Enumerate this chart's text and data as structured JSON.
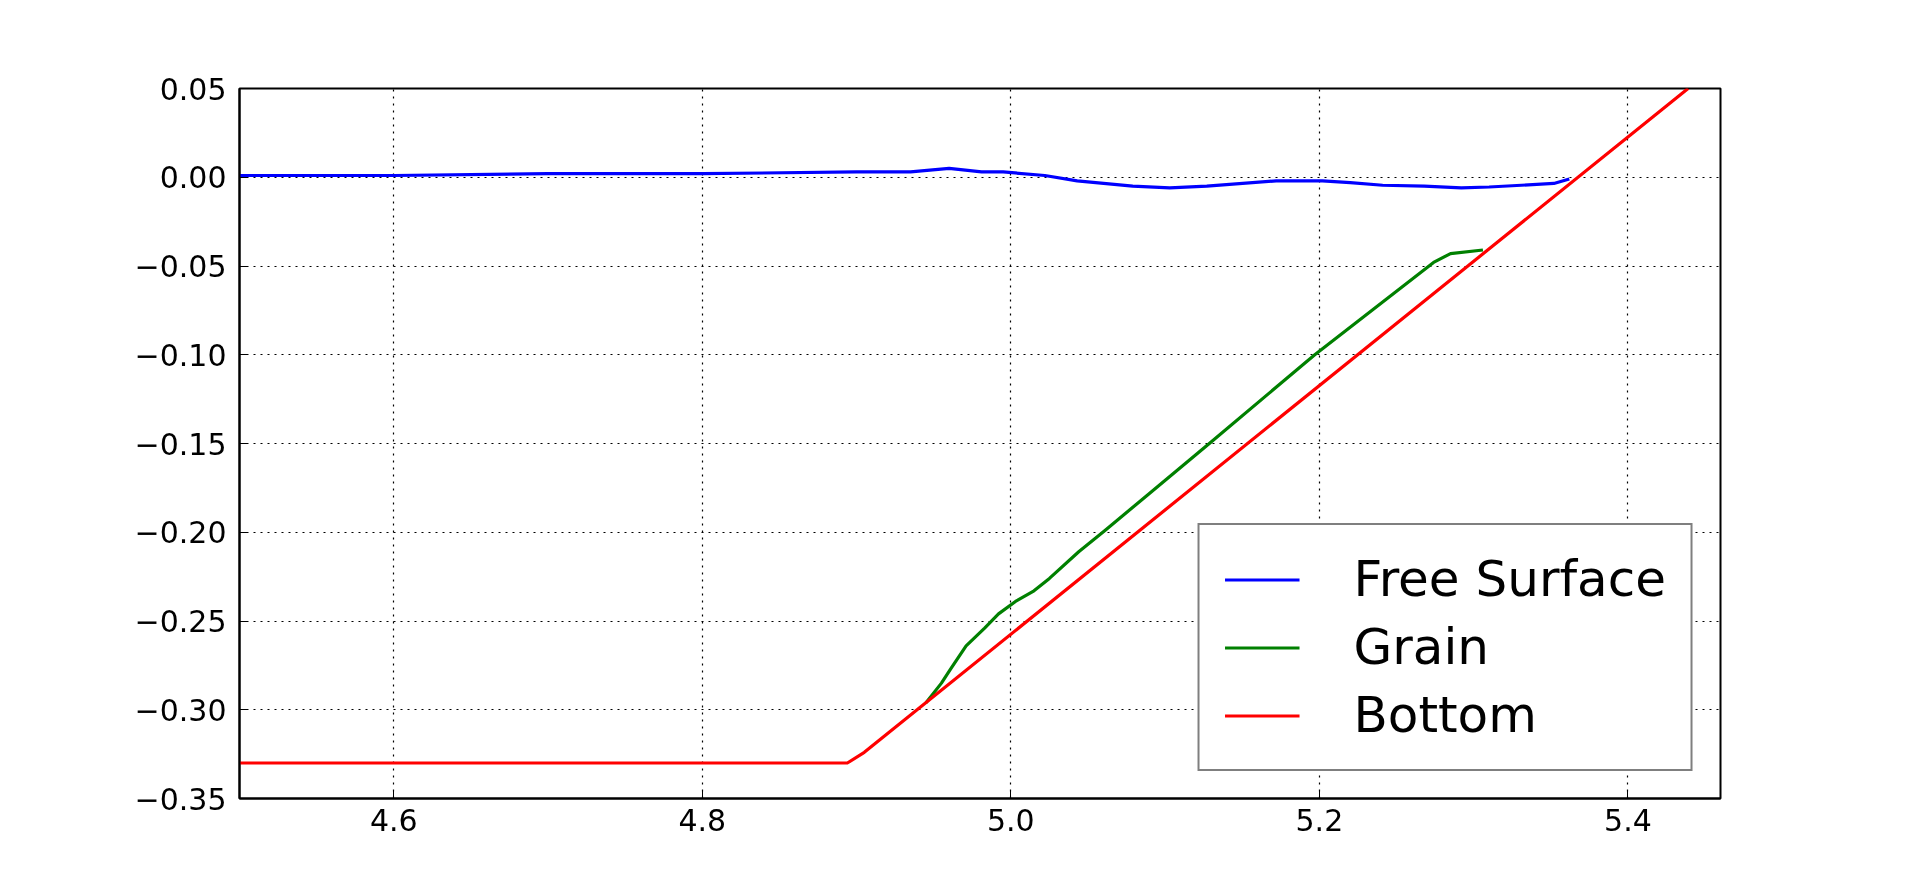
{
  "chart_data": {
    "type": "line",
    "xlim": [
      4.5,
      5.46
    ],
    "ylim": [
      -0.35,
      0.05
    ],
    "xticks": [
      4.6,
      4.8,
      {
        "value": 5.0,
        "label": "5.0"
      },
      5.2,
      5.4
    ],
    "yticks": [
      {
        "value": -0.35,
        "label": "−0.35"
      },
      {
        "value": -0.3,
        "label": "−0.30"
      },
      {
        "value": -0.25,
        "label": "−0.25"
      },
      {
        "value": -0.2,
        "label": "−0.20"
      },
      {
        "value": -0.15,
        "label": "−0.15"
      },
      {
        "value": -0.1,
        "label": "−0.10"
      },
      {
        "value": -0.05,
        "label": "−0.05"
      },
      {
        "value": 0.0,
        "label": "0.00"
      },
      {
        "value": 0.05,
        "label": "0.05"
      }
    ],
    "grid": true,
    "legend": "bottom right",
    "line_style": "solid",
    "series": [
      {
        "name": "Free Surface",
        "color": "#0000ff",
        "x": [
          4.5,
          4.6,
          4.7,
          4.8,
          4.9,
          4.935,
          4.96,
          4.981,
          4.995,
          5.022,
          5.043,
          5.079,
          5.103,
          5.127,
          5.172,
          5.202,
          5.22,
          5.241,
          5.268,
          5.292,
          5.31,
          5.352,
          5.362
        ],
        "values": [
          0.001,
          0.001,
          0.002,
          0.002,
          0.003,
          0.003,
          0.005,
          0.003,
          0.003,
          0.001,
          -0.002,
          -0.005,
          -0.006,
          -0.005,
          -0.002,
          -0.002,
          -0.003,
          -0.0045,
          -0.005,
          -0.006,
          -0.0055,
          -0.0035,
          -0.001
        ]
      },
      {
        "name": "Grain",
        "color": "#008000",
        "x": [
          4.945,
          4.955,
          4.961,
          4.971,
          4.983,
          4.992,
          5.003,
          5.015,
          5.025,
          5.044,
          5.061,
          5.09,
          5.13,
          5.197,
          5.274,
          5.285,
          5.306
        ],
        "values": [
          -0.296,
          -0.285,
          -0.277,
          -0.264,
          -0.254,
          -0.246,
          -0.239,
          -0.233,
          -0.226,
          -0.211,
          -0.199,
          -0.178,
          -0.149,
          -0.1,
          -0.048,
          -0.043,
          -0.041
        ]
      },
      {
        "name": "Bottom",
        "color": "#ff0000",
        "x": [
          4.5,
          4.894,
          4.905,
          5.439
        ],
        "values": [
          -0.33,
          -0.33,
          -0.324,
          0.05
        ]
      }
    ]
  }
}
